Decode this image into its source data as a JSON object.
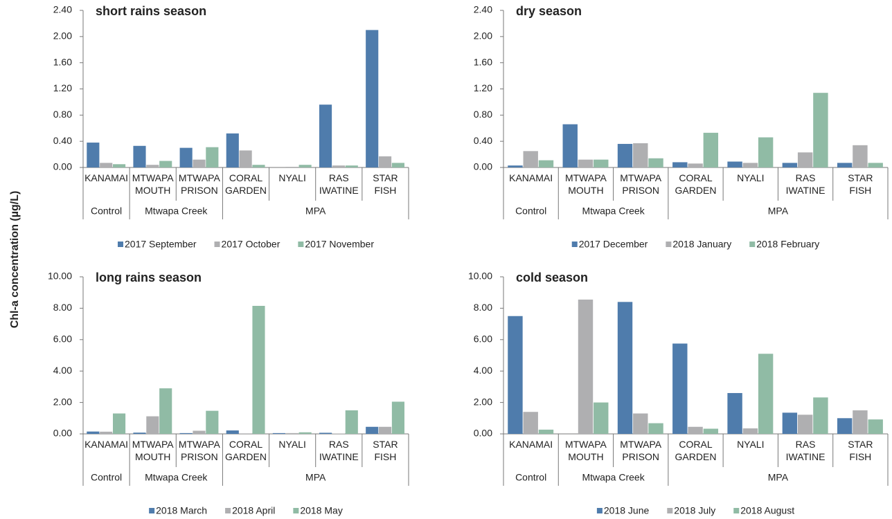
{
  "ylabel": "Chl-a concentration (µg/L)",
  "chart_data": [
    {
      "type": "bar",
      "title": "short rains season",
      "groups": [
        {
          "name": "Control",
          "categories": [
            [
              "KANAMAI"
            ]
          ]
        },
        {
          "name": "Mtwapa Creek",
          "categories": [
            [
              "MTWAPA",
              "MOUTH"
            ],
            [
              "MTWAPA",
              "PRISON"
            ]
          ]
        },
        {
          "name": "MPA",
          "categories": [
            [
              "CORAL",
              "GARDEN"
            ],
            [
              "NYALI"
            ],
            [
              "RAS",
              "IWATINE"
            ],
            [
              "STAR",
              "FISH"
            ]
          ]
        }
      ],
      "series": [
        {
          "name": "2017 September",
          "color": "#4f7cac",
          "values": [
            0.38,
            0.33,
            0.3,
            0.52,
            0.0,
            0.96,
            2.1
          ]
        },
        {
          "name": "2017 October",
          "color": "#afafb1",
          "values": [
            0.07,
            0.04,
            0.12,
            0.26,
            0.01,
            0.03,
            0.17
          ]
        },
        {
          "name": "2017 November",
          "color": "#90bba5",
          "values": [
            0.05,
            0.1,
            0.31,
            0.04,
            0.04,
            0.03,
            0.07
          ]
        }
      ],
      "ylim": [
        0,
        2.4
      ],
      "yticks": [
        {
          "value": 0,
          "label": "0.00"
        },
        {
          "value": 0.4,
          "label": "0.40"
        },
        {
          "value": 0.8,
          "label": "0.80"
        },
        {
          "value": 1.2,
          "label": "1.20"
        },
        {
          "value": 1.6,
          "label": "1.60"
        },
        {
          "value": 2.0,
          "label": "2.00"
        },
        {
          "value": 2.4,
          "label": "2.40"
        }
      ]
    },
    {
      "type": "bar",
      "title": "dry season",
      "groups": [
        {
          "name": "Control",
          "categories": [
            [
              "KANAMAI"
            ]
          ]
        },
        {
          "name": "Mtwapa Creek",
          "categories": [
            [
              "MTWAPA",
              "MOUTH"
            ],
            [
              "MTWAPA",
              "PRISON"
            ]
          ]
        },
        {
          "name": "MPA",
          "categories": [
            [
              "CORAL",
              "GARDEN"
            ],
            [
              "NYALI"
            ],
            [
              "RAS",
              "IWATINE"
            ],
            [
              "STAR",
              "FISH"
            ]
          ]
        }
      ],
      "series": [
        {
          "name": "2017 December",
          "color": "#4f7cac",
          "values": [
            0.03,
            0.66,
            0.36,
            0.08,
            0.09,
            0.07,
            0.07
          ]
        },
        {
          "name": "2018 January",
          "color": "#afafb1",
          "values": [
            0.25,
            0.12,
            0.37,
            0.06,
            0.07,
            0.23,
            0.34
          ]
        },
        {
          "name": "2018 February",
          "color": "#90bba5",
          "values": [
            0.11,
            0.12,
            0.14,
            0.53,
            0.46,
            1.14,
            0.07
          ]
        }
      ],
      "ylim": [
        0,
        2.4
      ],
      "yticks": [
        {
          "value": 0,
          "label": "0.00"
        },
        {
          "value": 0.4,
          "label": "0.40"
        },
        {
          "value": 0.8,
          "label": "0.80"
        },
        {
          "value": 1.2,
          "label": "1.20"
        },
        {
          "value": 1.6,
          "label": "1.60"
        },
        {
          "value": 2.0,
          "label": "2.00"
        },
        {
          "value": 2.4,
          "label": "2.40"
        }
      ]
    },
    {
      "type": "bar",
      "title": "long rains season",
      "groups": [
        {
          "name": "Control",
          "categories": [
            [
              "KANAMAI"
            ]
          ]
        },
        {
          "name": "Mtwapa Creek",
          "categories": [
            [
              "MTWAPA",
              "MOUTH"
            ],
            [
              "MTWAPA",
              "PRISON"
            ]
          ]
        },
        {
          "name": "MPA",
          "categories": [
            [
              "CORAL",
              "GARDEN"
            ],
            [
              "NYALI"
            ],
            [
              "RAS",
              "IWATINE"
            ],
            [
              "STAR",
              "FISH"
            ]
          ]
        }
      ],
      "series": [
        {
          "name": "2018 March",
          "color": "#4f7cac",
          "values": [
            0.15,
            0.08,
            0.05,
            0.22,
            0.05,
            0.07,
            0.45
          ]
        },
        {
          "name": "2018 April",
          "color": "#afafb1",
          "values": [
            0.14,
            1.12,
            0.2,
            0.03,
            0.05,
            0.02,
            0.45
          ]
        },
        {
          "name": "2018 May",
          "color": "#90bba5",
          "values": [
            1.3,
            2.9,
            1.47,
            8.15,
            0.1,
            1.5,
            2.05
          ]
        }
      ],
      "ylim": [
        0,
        10
      ],
      "yticks": [
        {
          "value": 0,
          "label": "0.00"
        },
        {
          "value": 2,
          "label": "2.00"
        },
        {
          "value": 4,
          "label": "4.00"
        },
        {
          "value": 6,
          "label": "6.00"
        },
        {
          "value": 8,
          "label": "8.00"
        },
        {
          "value": 10,
          "label": "10.00"
        }
      ]
    },
    {
      "type": "bar",
      "title": "cold season",
      "groups": [
        {
          "name": "Control",
          "categories": [
            [
              "KANAMAI"
            ]
          ]
        },
        {
          "name": "Mtwapa Creek",
          "categories": [
            [
              "MTWAPA",
              "MOUTH"
            ],
            [
              "MTWAPA",
              "PRISON"
            ]
          ]
        },
        {
          "name": "MPA",
          "categories": [
            [
              "CORAL",
              "GARDEN"
            ],
            [
              "NYALI"
            ],
            [
              "RAS",
              "IWATINE"
            ],
            [
              "STAR",
              "FISH"
            ]
          ]
        }
      ],
      "series": [
        {
          "name": "2018 June",
          "color": "#4f7cac",
          "values": [
            7.5,
            0.0,
            8.4,
            5.75,
            2.6,
            1.35,
            1.0
          ]
        },
        {
          "name": "2018 July",
          "color": "#afafb1",
          "values": [
            1.4,
            8.55,
            1.3,
            0.45,
            0.35,
            1.22,
            1.5
          ]
        },
        {
          "name": "2018 August",
          "color": "#90bba5",
          "values": [
            0.27,
            2.0,
            0.68,
            0.33,
            5.1,
            2.32,
            0.92
          ]
        }
      ],
      "ylim": [
        0,
        10
      ],
      "yticks": [
        {
          "value": 0,
          "label": "0.00"
        },
        {
          "value": 2,
          "label": "2.00"
        },
        {
          "value": 4,
          "label": "4.00"
        },
        {
          "value": 6,
          "label": "6.00"
        },
        {
          "value": 8,
          "label": "8.00"
        },
        {
          "value": 10,
          "label": "10.00"
        }
      ]
    }
  ]
}
